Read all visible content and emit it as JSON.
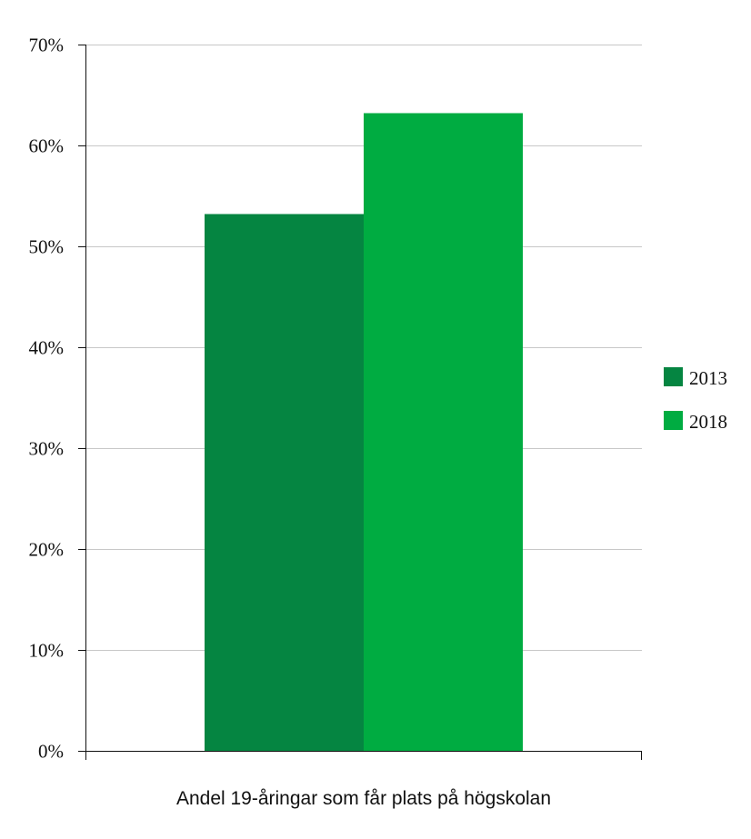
{
  "chart_data": {
    "type": "bar",
    "categories": [
      "Andel 19-åringar som får plats på högskolan"
    ],
    "series": [
      {
        "name": "2013",
        "color": "#058541",
        "values": [
          53.2
        ]
      },
      {
        "name": "2018",
        "color": "#00AC41",
        "values": [
          63.2
        ]
      }
    ],
    "xlabel": "Andel 19-åringar som får plats på högskolan",
    "ylabel": "",
    "ylim": [
      0,
      70
    ],
    "yticks": [
      0,
      10,
      20,
      30,
      40,
      50,
      60,
      70
    ],
    "ytick_labels": [
      "0%",
      "10%",
      "20%",
      "30%",
      "40%",
      "50%",
      "60%",
      "70%"
    ],
    "grid": true,
    "legend_position": "right"
  }
}
